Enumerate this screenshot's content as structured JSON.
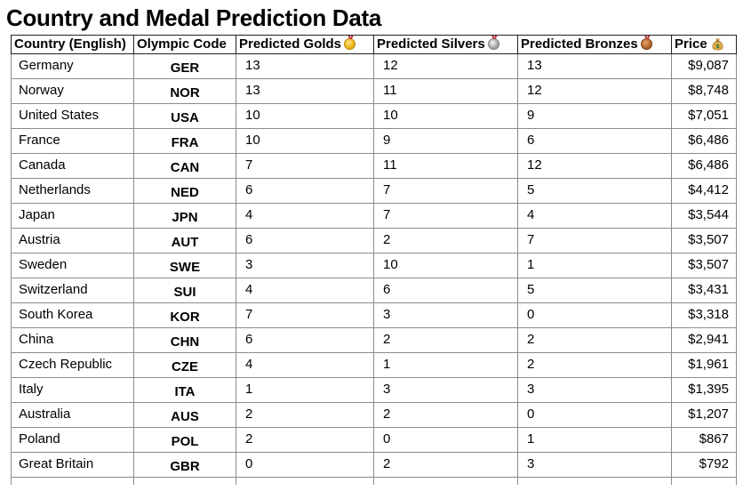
{
  "title": "Country and Medal Prediction Data",
  "table": {
    "headers": {
      "country": "Country (English)",
      "code": "Olympic Code",
      "golds": "Predicted Golds",
      "silvers": "Predicted Silvers",
      "bronzes": "Predicted Bronzes",
      "price": "Price"
    },
    "header_icons": {
      "golds": "gold-medal-icon",
      "silvers": "silver-medal-icon",
      "bronzes": "bronze-medal-icon",
      "price": "money-bag-icon"
    },
    "rows": [
      {
        "country": "Germany",
        "code": "GER",
        "golds": "13",
        "silvers": "12",
        "bronzes": "13",
        "price": "$9,087"
      },
      {
        "country": "Norway",
        "code": "NOR",
        "golds": "13",
        "silvers": "11",
        "bronzes": "12",
        "price": "$8,748"
      },
      {
        "country": "United States",
        "code": "USA",
        "golds": "10",
        "silvers": "10",
        "bronzes": "9",
        "price": "$7,051"
      },
      {
        "country": "France",
        "code": "FRA",
        "golds": "10",
        "silvers": "9",
        "bronzes": "6",
        "price": "$6,486"
      },
      {
        "country": "Canada",
        "code": "CAN",
        "golds": "7",
        "silvers": "11",
        "bronzes": "12",
        "price": "$6,486"
      },
      {
        "country": "Netherlands",
        "code": "NED",
        "golds": "6",
        "silvers": "7",
        "bronzes": "5",
        "price": "$4,412"
      },
      {
        "country": "Japan",
        "code": "JPN",
        "golds": "4",
        "silvers": "7",
        "bronzes": "4",
        "price": "$3,544"
      },
      {
        "country": "Austria",
        "code": "AUT",
        "golds": "6",
        "silvers": "2",
        "bronzes": "7",
        "price": "$3,507"
      },
      {
        "country": "Sweden",
        "code": "SWE",
        "golds": "3",
        "silvers": "10",
        "bronzes": "1",
        "price": "$3,507"
      },
      {
        "country": "Switzerland",
        "code": "SUI",
        "golds": "4",
        "silvers": "6",
        "bronzes": "5",
        "price": "$3,431"
      },
      {
        "country": "South Korea",
        "code": "KOR",
        "golds": "7",
        "silvers": "3",
        "bronzes": "0",
        "price": "$3,318"
      },
      {
        "country": "China",
        "code": "CHN",
        "golds": "6",
        "silvers": "2",
        "bronzes": "2",
        "price": "$2,941"
      },
      {
        "country": "Czech Republic",
        "code": "CZE",
        "golds": "4",
        "silvers": "1",
        "bronzes": "2",
        "price": "$1,961"
      },
      {
        "country": "Italy",
        "code": "ITA",
        "golds": "1",
        "silvers": "3",
        "bronzes": "3",
        "price": "$1,395"
      },
      {
        "country": "Australia",
        "code": "AUS",
        "golds": "2",
        "silvers": "2",
        "bronzes": "0",
        "price": "$1,207"
      },
      {
        "country": "Poland",
        "code": "POL",
        "golds": "2",
        "silvers": "0",
        "bronzes": "1",
        "price": "$867"
      },
      {
        "country": "Great Britain",
        "code": "GBR",
        "golds": "0",
        "silvers": "2",
        "bronzes": "3",
        "price": "$792"
      }
    ]
  }
}
